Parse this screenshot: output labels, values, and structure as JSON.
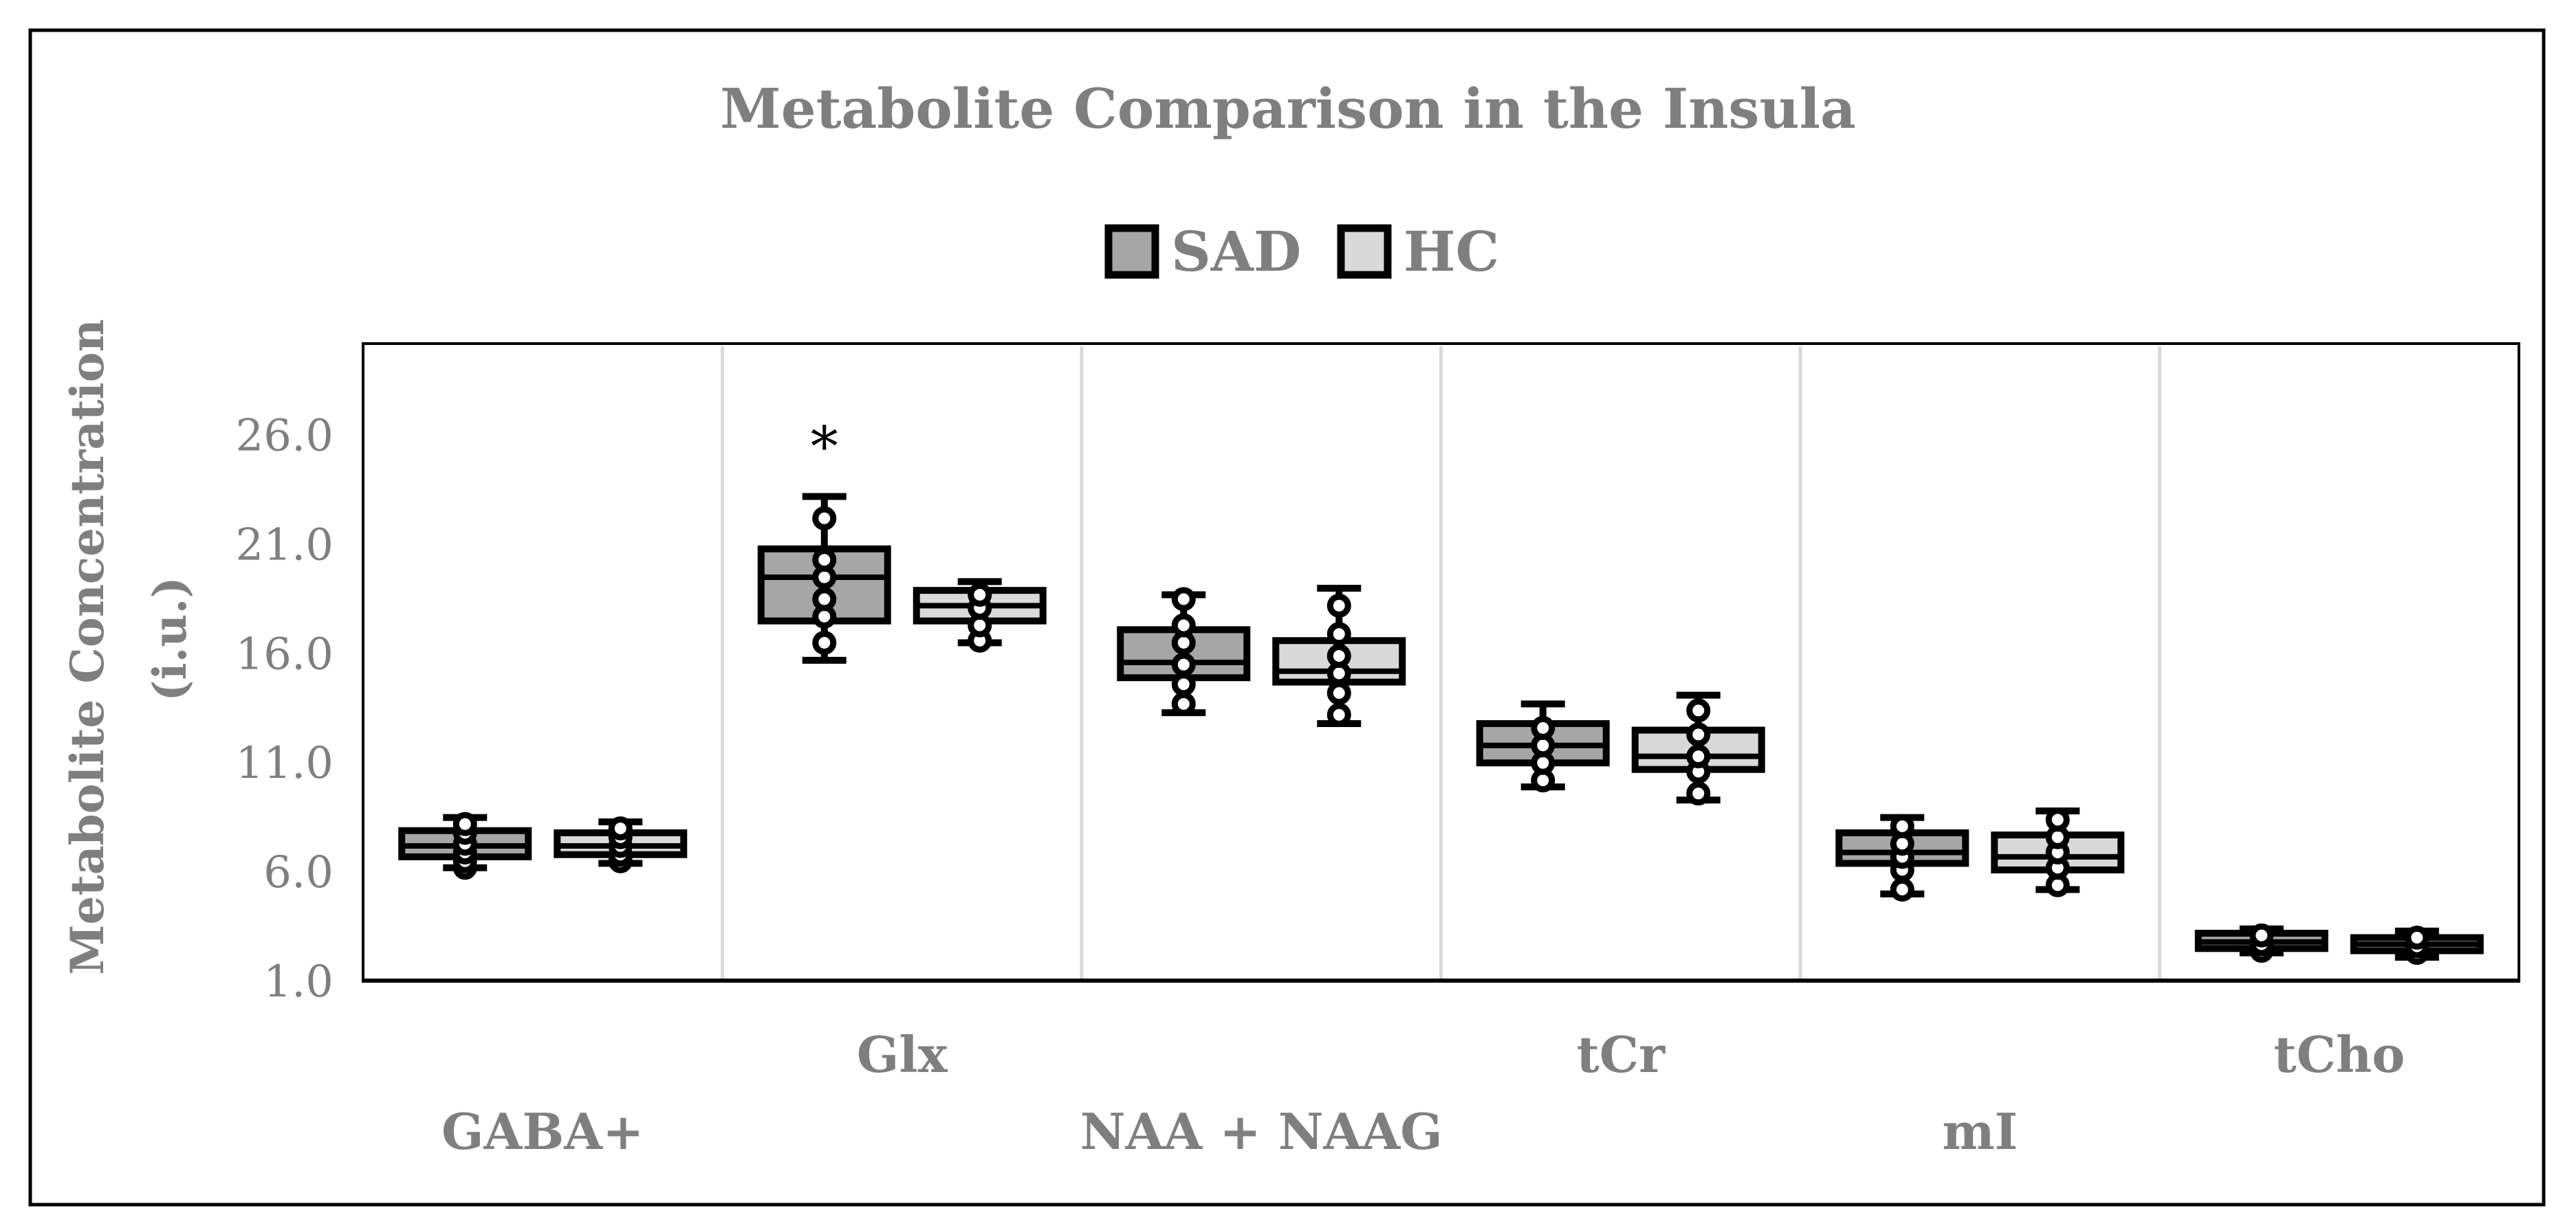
{
  "chart_data": {
    "type": "box",
    "title": "Metabolite Comparison in the Insula",
    "ylabel_line1": "Metabolite Concentration",
    "ylabel_line2": "(i.u.)",
    "ylim": [
      1.0,
      30.2
    ],
    "yticks": [
      1.0,
      6.0,
      11.0,
      16.0,
      21.0,
      26.0
    ],
    "ytick_labels": [
      "1.0",
      "6.0",
      "11.0",
      "16.0",
      "21.0",
      "26.0"
    ],
    "legend": [
      {
        "name": "SAD",
        "color": "#a6a6a6"
      },
      {
        "name": "HC",
        "color": "#d9d9d9"
      }
    ],
    "categories": [
      {
        "label": "GABA+",
        "label_row": 2,
        "annotation": "",
        "groups": [
          {
            "name": "SAD",
            "min": 6.2,
            "q1": 6.7,
            "median": 7.2,
            "q3": 7.9,
            "max": 8.5,
            "points": [
              6.2,
              6.5,
              6.9,
              7.3,
              7.8,
              8.2
            ]
          },
          {
            "name": "HC",
            "min": 6.4,
            "q1": 6.8,
            "median": 7.2,
            "q3": 7.8,
            "max": 8.3,
            "points": [
              6.5,
              6.8,
              7.2,
              7.6,
              8.0
            ]
          }
        ]
      },
      {
        "label": "Glx",
        "label_row": 1,
        "annotation": "*",
        "groups": [
          {
            "name": "SAD",
            "min": 15.7,
            "q1": 17.5,
            "median": 19.5,
            "q3": 20.8,
            "max": 23.2,
            "points": [
              16.5,
              17.7,
              18.5,
              19.5,
              20.3,
              22.2
            ]
          },
          {
            "name": "HC",
            "min": 16.5,
            "q1": 17.5,
            "median": 18.2,
            "q3": 18.9,
            "max": 19.3,
            "points": [
              16.6,
              17.3,
              18.1,
              18.7
            ]
          }
        ]
      },
      {
        "label": "NAA + NAAG",
        "label_row": 2,
        "annotation": "",
        "groups": [
          {
            "name": "SAD",
            "min": 13.3,
            "q1": 14.9,
            "median": 15.6,
            "q3": 17.1,
            "max": 18.7,
            "points": [
              13.7,
              14.6,
              15.5,
              16.5,
              17.3,
              18.5
            ]
          },
          {
            "name": "HC",
            "min": 12.8,
            "q1": 14.7,
            "median": 15.2,
            "q3": 16.6,
            "max": 19.0,
            "points": [
              13.2,
              14.2,
              15.1,
              15.9,
              16.9,
              18.2
            ]
          }
        ]
      },
      {
        "label": "tCr",
        "label_row": 1,
        "annotation": "",
        "groups": [
          {
            "name": "SAD",
            "min": 9.9,
            "q1": 11.0,
            "median": 11.8,
            "q3": 12.8,
            "max": 13.7,
            "points": [
              10.2,
              11.0,
              11.8,
              12.6
            ]
          },
          {
            "name": "HC",
            "min": 9.3,
            "q1": 10.7,
            "median": 11.3,
            "q3": 12.5,
            "max": 14.1,
            "points": [
              9.6,
              10.6,
              11.3,
              12.3,
              13.4
            ]
          }
        ]
      },
      {
        "label": "mI",
        "label_row": 2,
        "annotation": "",
        "groups": [
          {
            "name": "SAD",
            "min": 5.0,
            "q1": 6.4,
            "median": 6.9,
            "q3": 7.8,
            "max": 8.5,
            "points": [
              5.2,
              6.1,
              6.7,
              7.3,
              8.1
            ]
          },
          {
            "name": "HC",
            "min": 5.2,
            "q1": 6.1,
            "median": 6.7,
            "q3": 7.7,
            "max": 8.8,
            "points": [
              5.4,
              6.2,
              6.9,
              7.6,
              8.4
            ]
          }
        ]
      },
      {
        "label": "tCho",
        "label_row": 1,
        "annotation": "",
        "groups": [
          {
            "name": "SAD",
            "min": 2.3,
            "q1": 2.5,
            "median": 2.8,
            "q3": 3.2,
            "max": 3.4,
            "points": [
              2.4,
              2.7,
              3.1
            ]
          },
          {
            "name": "HC",
            "min": 2.1,
            "q1": 2.4,
            "median": 2.7,
            "q3": 3.0,
            "max": 3.3,
            "points": [
              2.3,
              2.6,
              3.0
            ]
          }
        ]
      }
    ]
  }
}
